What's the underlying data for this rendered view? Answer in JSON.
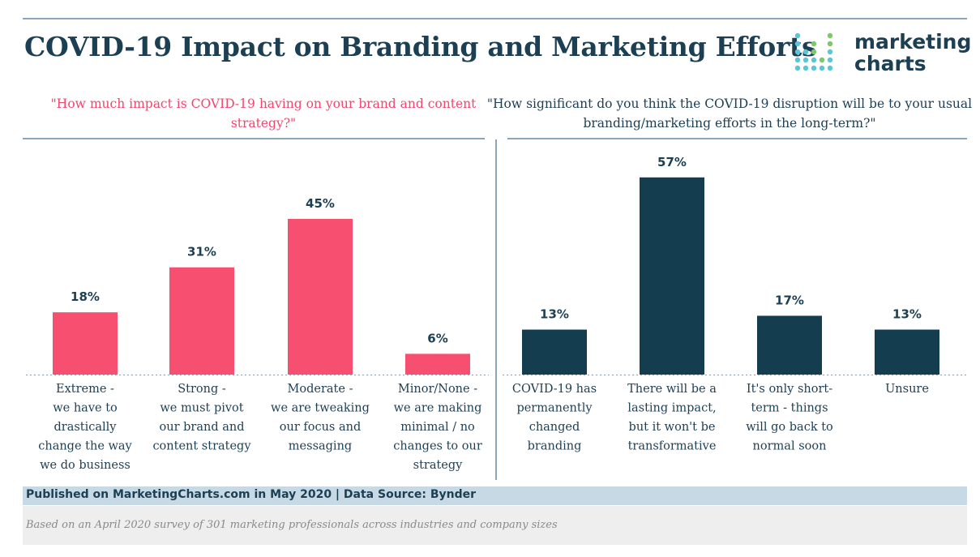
{
  "header": {
    "title": "COVID-19 Impact on Branding and Marketing Efforts",
    "logo_line1": "marketing",
    "logo_line2": "charts"
  },
  "colors": {
    "left_series": "#f74f70",
    "right_series": "#143d50",
    "left_question": "#f0476f",
    "navy": "#1c3f53"
  },
  "chart_data": [
    {
      "type": "bar",
      "question": "\"How much impact is COVID-19 having on your brand and content strategy?\"",
      "categories": [
        [
          "Extreme -",
          "we have to",
          "drastically",
          "change the way",
          "we do business"
        ],
        [
          "Strong -",
          "we must pivot",
          "our brand and",
          "content strategy"
        ],
        [
          "Moderate -",
          "we are tweaking",
          "our focus and",
          "messaging"
        ],
        [
          "Minor/None -",
          "we are making",
          "minimal / no",
          "changes to our",
          "strategy"
        ]
      ],
      "values": [
        18,
        31,
        45,
        6
      ],
      "value_labels": [
        "18%",
        "31%",
        "45%",
        "6%"
      ],
      "ylim": [
        0,
        60
      ],
      "grid": false
    },
    {
      "type": "bar",
      "question": "\"How significant do you think the COVID-19 disruption will be to your usual branding/marketing efforts in the long-term?\"",
      "categories": [
        [
          "COVID-19 has",
          "permanently",
          "changed",
          "branding"
        ],
        [
          "There will be a",
          "lasting impact,",
          "but it won't be",
          "transformative"
        ],
        [
          "It's only short-",
          "term - things",
          "will go back to",
          "normal soon"
        ],
        [
          "Unsure"
        ]
      ],
      "values": [
        13,
        57,
        17,
        13
      ],
      "value_labels": [
        "13%",
        "57%",
        "17%",
        "13%"
      ],
      "ylim": [
        0,
        60
      ],
      "grid": false
    }
  ],
  "footer": {
    "published": "Published on MarketingCharts.com in May 2020 | Data Source: Bynder",
    "note": "Based on an April 2020 survey of 301 marketing professionals across industries and company sizes"
  }
}
